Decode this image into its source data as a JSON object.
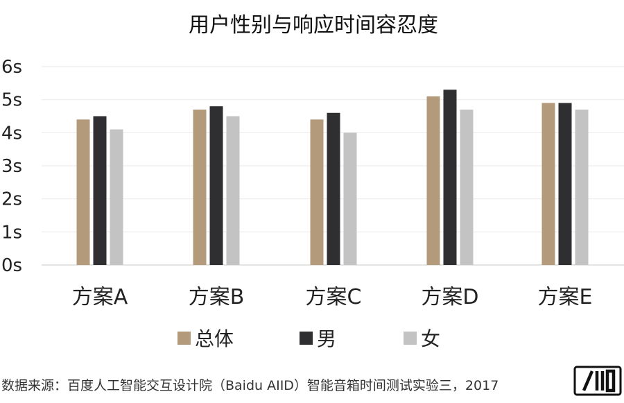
{
  "chart_data": {
    "type": "bar",
    "title": "用户性别与响应时间容忍度",
    "xlabel": "",
    "ylabel": "",
    "categories": [
      "方案A",
      "方案B",
      "方案C",
      "方案D",
      "方案E"
    ],
    "series": [
      {
        "name": "总体",
        "color": "#B29A7B",
        "values": [
          4.4,
          4.7,
          4.4,
          5.1,
          4.9
        ]
      },
      {
        "name": "男",
        "color": "#2F2F31",
        "values": [
          4.5,
          4.8,
          4.6,
          5.3,
          4.9
        ]
      },
      {
        "name": "女",
        "color": "#C3C3C4",
        "values": [
          4.1,
          4.5,
          4.0,
          4.7,
          4.7
        ]
      }
    ],
    "ylim": [
      0,
      6
    ],
    "yticks": [
      "0s",
      "1s",
      "2s",
      "3s",
      "4s",
      "5s",
      "6s"
    ],
    "grid": true,
    "legend": "bottom"
  },
  "source_note": "数据来源：百度人工智能交互设计院（Baidu AIID）智能音箱时间测试实验三，2017",
  "logo_text": "AIID"
}
